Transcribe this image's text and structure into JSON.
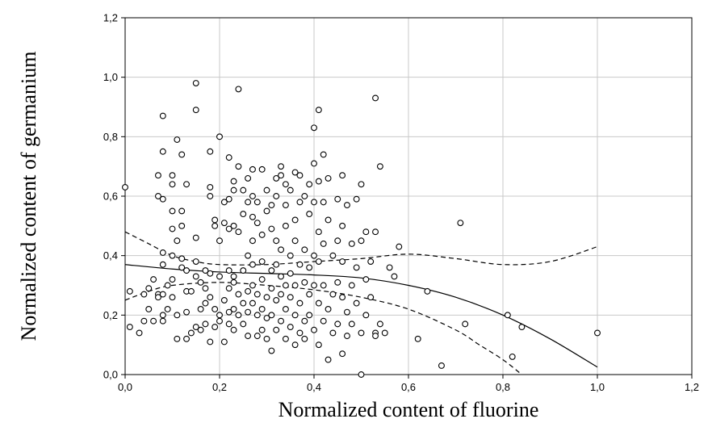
{
  "chart_data": {
    "type": "scatter",
    "title": "",
    "xlabel": "Normalized content of fluorine",
    "ylabel": "Normalized content of germanium",
    "xlim": [
      0,
      1.2
    ],
    "ylim": [
      0,
      1.2
    ],
    "x_ticks": [
      "0,0",
      "0,2",
      "0,4",
      "0,6",
      "0,8",
      "1,0",
      "1,2"
    ],
    "y_ticks": [
      "0,0",
      "0,2",
      "0,4",
      "0,6",
      "0,8",
      "1,0",
      "1,2"
    ],
    "grid": true,
    "legend": "none",
    "series": [
      {
        "type": "scatter",
        "marker": "open-circle",
        "points": [
          [
            0.0,
            0.63
          ],
          [
            0.01,
            0.28
          ],
          [
            0.01,
            0.16
          ],
          [
            0.03,
            0.14
          ],
          [
            0.04,
            0.18
          ],
          [
            0.04,
            0.27
          ],
          [
            0.05,
            0.22
          ],
          [
            0.05,
            0.29
          ],
          [
            0.06,
            0.32
          ],
          [
            0.06,
            0.18
          ],
          [
            0.07,
            0.27
          ],
          [
            0.07,
            0.26
          ],
          [
            0.07,
            0.6
          ],
          [
            0.07,
            0.67
          ],
          [
            0.08,
            0.87
          ],
          [
            0.08,
            0.75
          ],
          [
            0.08,
            0.59
          ],
          [
            0.08,
            0.41
          ],
          [
            0.08,
            0.37
          ],
          [
            0.08,
            0.27
          ],
          [
            0.08,
            0.2
          ],
          [
            0.08,
            0.18
          ],
          [
            0.09,
            0.3
          ],
          [
            0.09,
            0.22
          ],
          [
            0.1,
            0.67
          ],
          [
            0.1,
            0.64
          ],
          [
            0.1,
            0.55
          ],
          [
            0.1,
            0.49
          ],
          [
            0.1,
            0.4
          ],
          [
            0.1,
            0.32
          ],
          [
            0.1,
            0.26
          ],
          [
            0.11,
            0.79
          ],
          [
            0.11,
            0.45
          ],
          [
            0.11,
            0.2
          ],
          [
            0.11,
            0.12
          ],
          [
            0.12,
            0.74
          ],
          [
            0.12,
            0.55
          ],
          [
            0.12,
            0.5
          ],
          [
            0.12,
            0.39
          ],
          [
            0.12,
            0.36
          ],
          [
            0.13,
            0.64
          ],
          [
            0.13,
            0.35
          ],
          [
            0.13,
            0.28
          ],
          [
            0.13,
            0.21
          ],
          [
            0.13,
            0.12
          ],
          [
            0.14,
            0.28
          ],
          [
            0.14,
            0.14
          ],
          [
            0.15,
            0.98
          ],
          [
            0.15,
            0.89
          ],
          [
            0.15,
            0.46
          ],
          [
            0.15,
            0.38
          ],
          [
            0.15,
            0.33
          ],
          [
            0.15,
            0.16
          ],
          [
            0.16,
            0.31
          ],
          [
            0.16,
            0.22
          ],
          [
            0.16,
            0.15
          ],
          [
            0.17,
            0.35
          ],
          [
            0.17,
            0.29
          ],
          [
            0.17,
            0.24
          ],
          [
            0.17,
            0.17
          ],
          [
            0.18,
            0.75
          ],
          [
            0.18,
            0.63
          ],
          [
            0.18,
            0.6
          ],
          [
            0.18,
            0.34
          ],
          [
            0.18,
            0.26
          ],
          [
            0.18,
            0.11
          ],
          [
            0.19,
            0.52
          ],
          [
            0.19,
            0.5
          ],
          [
            0.19,
            0.22
          ],
          [
            0.19,
            0.16
          ],
          [
            0.2,
            0.8
          ],
          [
            0.2,
            0.45
          ],
          [
            0.2,
            0.33
          ],
          [
            0.2,
            0.2
          ],
          [
            0.2,
            0.18
          ],
          [
            0.21,
            0.58
          ],
          [
            0.21,
            0.51
          ],
          [
            0.21,
            0.25
          ],
          [
            0.21,
            0.11
          ],
          [
            0.22,
            0.73
          ],
          [
            0.22,
            0.59
          ],
          [
            0.22,
            0.49
          ],
          [
            0.22,
            0.35
          ],
          [
            0.22,
            0.29
          ],
          [
            0.22,
            0.21
          ],
          [
            0.22,
            0.17
          ],
          [
            0.23,
            0.65
          ],
          [
            0.23,
            0.62
          ],
          [
            0.23,
            0.5
          ],
          [
            0.23,
            0.33
          ],
          [
            0.23,
            0.31
          ],
          [
            0.23,
            0.22
          ],
          [
            0.23,
            0.15
          ],
          [
            0.24,
            0.96
          ],
          [
            0.24,
            0.7
          ],
          [
            0.24,
            0.48
          ],
          [
            0.24,
            0.27
          ],
          [
            0.24,
            0.2
          ],
          [
            0.25,
            0.62
          ],
          [
            0.25,
            0.54
          ],
          [
            0.25,
            0.35
          ],
          [
            0.25,
            0.24
          ],
          [
            0.25,
            0.17
          ],
          [
            0.26,
            0.66
          ],
          [
            0.26,
            0.58
          ],
          [
            0.26,
            0.4
          ],
          [
            0.26,
            0.28
          ],
          [
            0.26,
            0.21
          ],
          [
            0.26,
            0.13
          ],
          [
            0.27,
            0.69
          ],
          [
            0.27,
            0.6
          ],
          [
            0.27,
            0.53
          ],
          [
            0.27,
            0.45
          ],
          [
            0.27,
            0.37
          ],
          [
            0.27,
            0.3
          ],
          [
            0.27,
            0.24
          ],
          [
            0.28,
            0.58
          ],
          [
            0.28,
            0.51
          ],
          [
            0.28,
            0.27
          ],
          [
            0.28,
            0.2
          ],
          [
            0.28,
            0.13
          ],
          [
            0.29,
            0.69
          ],
          [
            0.29,
            0.47
          ],
          [
            0.29,
            0.38
          ],
          [
            0.29,
            0.32
          ],
          [
            0.29,
            0.22
          ],
          [
            0.29,
            0.15
          ],
          [
            0.3,
            0.62
          ],
          [
            0.3,
            0.55
          ],
          [
            0.3,
            0.26
          ],
          [
            0.3,
            0.19
          ],
          [
            0.3,
            0.12
          ],
          [
            0.31,
            0.57
          ],
          [
            0.31,
            0.49
          ],
          [
            0.31,
            0.35
          ],
          [
            0.31,
            0.29
          ],
          [
            0.31,
            0.2
          ],
          [
            0.31,
            0.08
          ],
          [
            0.32,
            0.66
          ],
          [
            0.32,
            0.6
          ],
          [
            0.32,
            0.45
          ],
          [
            0.32,
            0.37
          ],
          [
            0.32,
            0.25
          ],
          [
            0.32,
            0.15
          ],
          [
            0.33,
            0.7
          ],
          [
            0.33,
            0.67
          ],
          [
            0.33,
            0.42
          ],
          [
            0.33,
            0.33
          ],
          [
            0.33,
            0.27
          ],
          [
            0.33,
            0.18
          ],
          [
            0.34,
            0.64
          ],
          [
            0.34,
            0.57
          ],
          [
            0.34,
            0.5
          ],
          [
            0.34,
            0.3
          ],
          [
            0.34,
            0.22
          ],
          [
            0.34,
            0.12
          ],
          [
            0.35,
            0.62
          ],
          [
            0.35,
            0.4
          ],
          [
            0.35,
            0.34
          ],
          [
            0.35,
            0.26
          ],
          [
            0.35,
            0.16
          ],
          [
            0.36,
            0.68
          ],
          [
            0.36,
            0.52
          ],
          [
            0.36,
            0.45
          ],
          [
            0.36,
            0.3
          ],
          [
            0.36,
            0.2
          ],
          [
            0.36,
            0.1
          ],
          [
            0.37,
            0.67
          ],
          [
            0.37,
            0.58
          ],
          [
            0.37,
            0.37
          ],
          [
            0.37,
            0.24
          ],
          [
            0.37,
            0.14
          ],
          [
            0.38,
            0.6
          ],
          [
            0.38,
            0.42
          ],
          [
            0.38,
            0.31
          ],
          [
            0.38,
            0.18
          ],
          [
            0.38,
            0.12
          ],
          [
            0.39,
            0.64
          ],
          [
            0.39,
            0.54
          ],
          [
            0.39,
            0.36
          ],
          [
            0.39,
            0.27
          ],
          [
            0.39,
            0.2
          ],
          [
            0.4,
            0.83
          ],
          [
            0.4,
            0.71
          ],
          [
            0.4,
            0.58
          ],
          [
            0.4,
            0.4
          ],
          [
            0.4,
            0.3
          ],
          [
            0.4,
            0.15
          ],
          [
            0.41,
            0.89
          ],
          [
            0.41,
            0.65
          ],
          [
            0.41,
            0.48
          ],
          [
            0.41,
            0.38
          ],
          [
            0.41,
            0.24
          ],
          [
            0.41,
            0.1
          ],
          [
            0.42,
            0.74
          ],
          [
            0.42,
            0.58
          ],
          [
            0.42,
            0.44
          ],
          [
            0.42,
            0.3
          ],
          [
            0.42,
            0.18
          ],
          [
            0.43,
            0.66
          ],
          [
            0.43,
            0.52
          ],
          [
            0.43,
            0.22
          ],
          [
            0.43,
            0.05
          ],
          [
            0.44,
            0.4
          ],
          [
            0.44,
            0.27
          ],
          [
            0.44,
            0.14
          ],
          [
            0.45,
            0.59
          ],
          [
            0.45,
            0.45
          ],
          [
            0.45,
            0.31
          ],
          [
            0.45,
            0.17
          ],
          [
            0.46,
            0.67
          ],
          [
            0.46,
            0.5
          ],
          [
            0.46,
            0.38
          ],
          [
            0.46,
            0.26
          ],
          [
            0.46,
            0.07
          ],
          [
            0.47,
            0.57
          ],
          [
            0.47,
            0.21
          ],
          [
            0.47,
            0.13
          ],
          [
            0.48,
            0.44
          ],
          [
            0.48,
            0.3
          ],
          [
            0.48,
            0.17
          ],
          [
            0.49,
            0.59
          ],
          [
            0.49,
            0.36
          ],
          [
            0.49,
            0.24
          ],
          [
            0.5,
            0.64
          ],
          [
            0.5,
            0.45
          ],
          [
            0.5,
            0.14
          ],
          [
            0.5,
            0.0
          ],
          [
            0.51,
            0.48
          ],
          [
            0.51,
            0.32
          ],
          [
            0.51,
            0.2
          ],
          [
            0.52,
            0.38
          ],
          [
            0.52,
            0.26
          ],
          [
            0.53,
            0.93
          ],
          [
            0.53,
            0.48
          ],
          [
            0.53,
            0.14
          ],
          [
            0.53,
            0.13
          ],
          [
            0.54,
            0.7
          ],
          [
            0.54,
            0.17
          ],
          [
            0.55,
            0.14
          ],
          [
            0.56,
            0.36
          ],
          [
            0.57,
            0.33
          ],
          [
            0.58,
            0.43
          ],
          [
            0.62,
            0.12
          ],
          [
            0.64,
            0.28
          ],
          [
            0.67,
            0.03
          ],
          [
            0.71,
            0.51
          ],
          [
            0.72,
            0.17
          ],
          [
            0.81,
            0.2
          ],
          [
            0.82,
            0.06
          ],
          [
            0.84,
            0.16
          ],
          [
            1.0,
            0.14
          ]
        ]
      },
      {
        "type": "line",
        "style": "solid",
        "name": "",
        "x": [
          0.0,
          0.1,
          0.2,
          0.3,
          0.4,
          0.5,
          0.6,
          0.7,
          0.8,
          0.9,
          1.0
        ],
        "y": [
          0.37,
          0.355,
          0.345,
          0.34,
          0.335,
          0.325,
          0.3,
          0.26,
          0.2,
          0.12,
          0.025
        ]
      },
      {
        "type": "line",
        "style": "dashed",
        "name": "",
        "x": [
          0.0,
          0.05,
          0.1,
          0.15,
          0.2,
          0.3,
          0.4,
          0.5,
          0.6,
          0.7,
          0.8,
          0.9,
          1.0
        ],
        "y": [
          0.48,
          0.44,
          0.4,
          0.38,
          0.37,
          0.37,
          0.38,
          0.39,
          0.405,
          0.39,
          0.37,
          0.38,
          0.43
        ]
      },
      {
        "type": "line",
        "style": "dashed",
        "name": "",
        "x": [
          0.0,
          0.05,
          0.1,
          0.2,
          0.3,
          0.4,
          0.5,
          0.6,
          0.7,
          0.75,
          0.8,
          0.84
        ],
        "y": [
          0.25,
          0.28,
          0.3,
          0.31,
          0.3,
          0.285,
          0.26,
          0.22,
          0.15,
          0.1,
          0.05,
          0.0
        ]
      }
    ]
  }
}
